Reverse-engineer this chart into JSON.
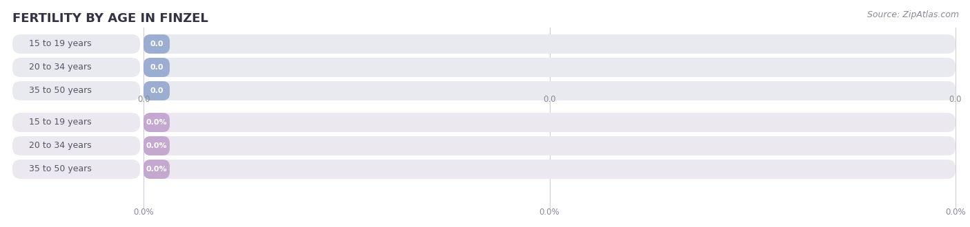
{
  "title": "FERTILITY BY AGE IN FINZEL",
  "source_text": "Source: ZipAtlas.com",
  "tick_label_color": "#888899",
  "top_section": {
    "categories": [
      "15 to 19 years",
      "20 to 34 years",
      "35 to 50 years"
    ],
    "values": [
      0.0,
      0.0,
      0.0
    ],
    "bar_bg_color": "#e8eaf0",
    "bar_fill_color": "#9badd0",
    "label_color": "#555566",
    "value_color": "#ffffff",
    "tick_labels": [
      "0.0",
      "0.0",
      "0.0"
    ]
  },
  "bottom_section": {
    "categories": [
      "15 to 19 years",
      "20 to 34 years",
      "35 to 50 years"
    ],
    "values": [
      0.0,
      0.0,
      0.0
    ],
    "bar_bg_color": "#ece8f0",
    "bar_fill_color": "#c4a8d0",
    "label_color": "#555566",
    "value_color": "#ffffff",
    "tick_labels": [
      "0.0%",
      "0.0%",
      "0.0%"
    ]
  },
  "bg_color": "#ffffff",
  "grid_color": "#ccccdd",
  "title_color": "#333344",
  "source_color": "#888899"
}
